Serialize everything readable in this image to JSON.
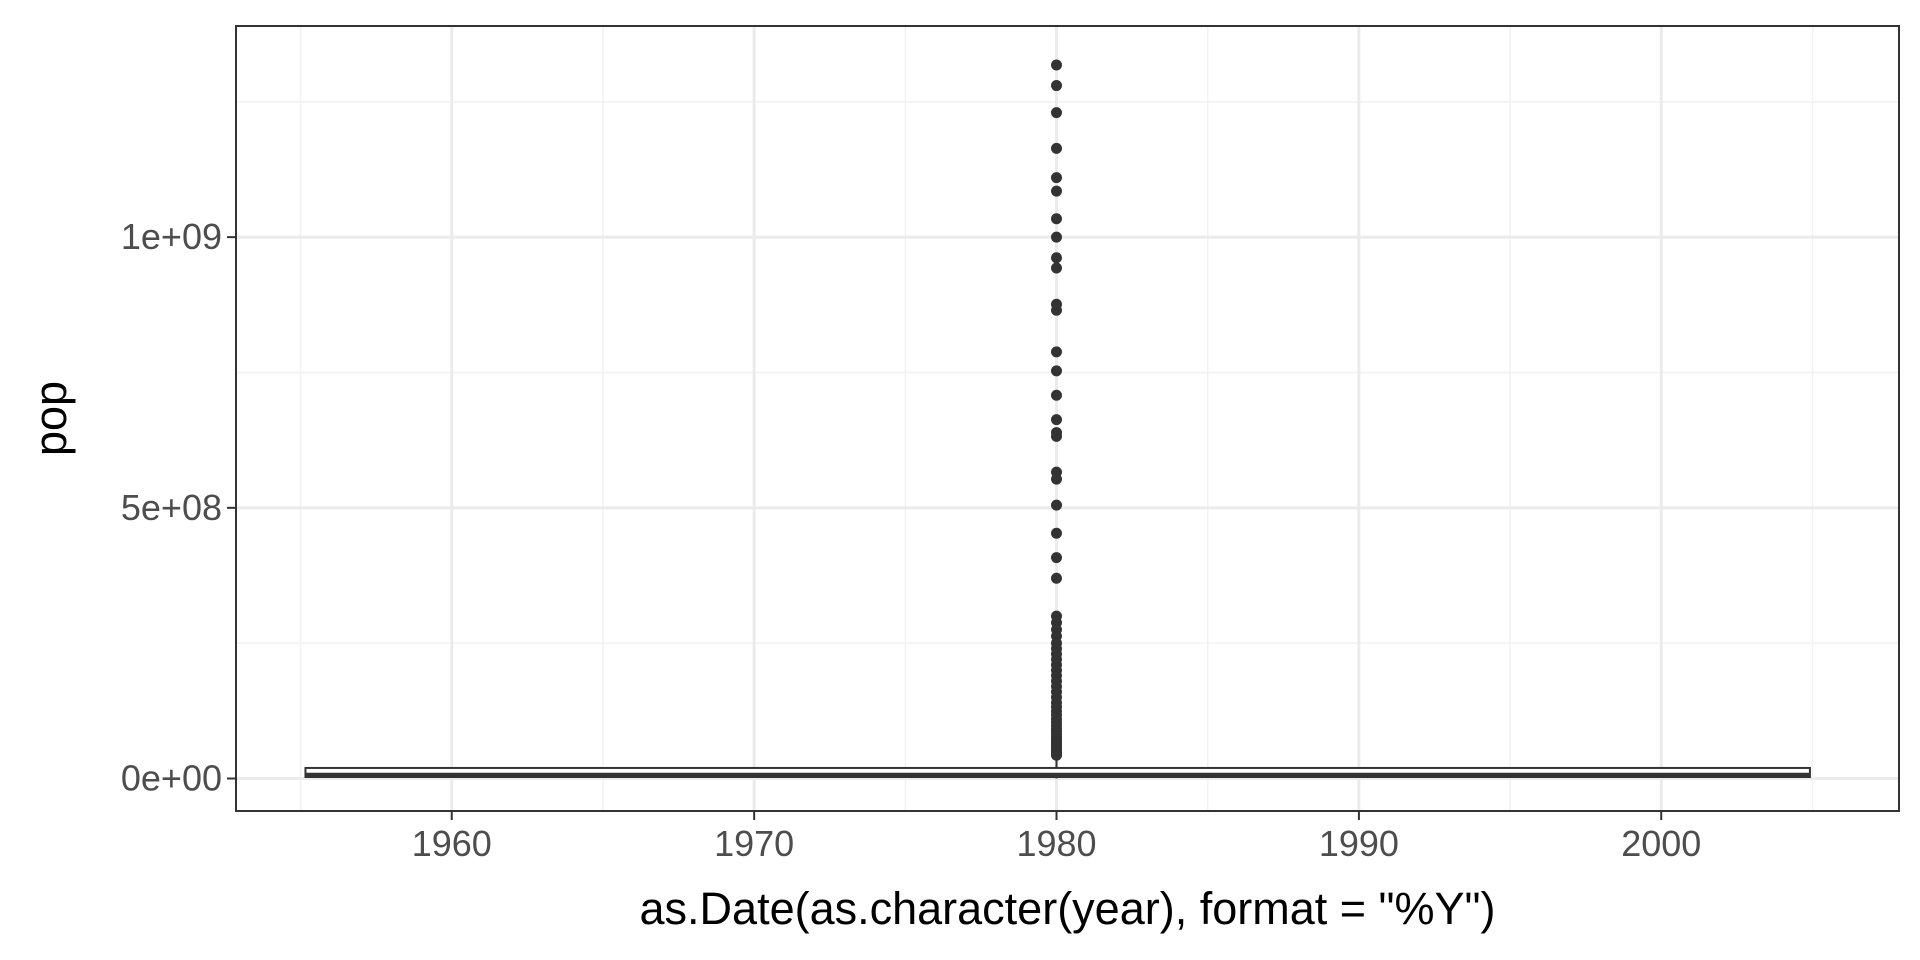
{
  "chart_data": {
    "type": "boxplot",
    "x_type": "date",
    "xlabel": "as.Date(as.character(year), format = \"%Y\")",
    "ylabel": "pop",
    "xlim": [
      "1952-11-12",
      "2007-11-12"
    ],
    "ylim": [
      -60000000,
      1390000000
    ],
    "x_ticks": [
      {
        "value": "1960-01-01",
        "label": "1960"
      },
      {
        "value": "1970-01-01",
        "label": "1970"
      },
      {
        "value": "1980-01-01",
        "label": "1980"
      },
      {
        "value": "1990-01-01",
        "label": "1990"
      },
      {
        "value": "2000-01-01",
        "label": "2000"
      }
    ],
    "x_minor_ticks": [
      "1955-01-01",
      "1965-01-01",
      "1975-01-01",
      "1985-01-01",
      "1995-01-01",
      "2005-01-01"
    ],
    "y_ticks": [
      {
        "value": 0,
        "label": "0e+00"
      },
      {
        "value": 500000000,
        "label": "5e+08"
      },
      {
        "value": 1000000000,
        "label": "1e+09"
      }
    ],
    "y_minor_ticks": [
      250000000,
      750000000,
      1250000000
    ],
    "grid": true,
    "box": {
      "x_start": "1955-03-01",
      "x_end": "2004-12-01",
      "x_center": "1980-01-01",
      "q1": 2800000,
      "median": 7000000,
      "q3": 19500000,
      "whisker_low": 60000,
      "whisker_high": 42000000
    },
    "outliers": {
      "x": "1980-01-01",
      "y": [
        1318000000,
        1280000000,
        1230000000,
        1164000000,
        1110000000,
        1085000000,
        1034000000,
        1000000000,
        962000000,
        943000000,
        876000000,
        865000000,
        788000000,
        753000000,
        708000000,
        663000000,
        639000000,
        632000000,
        566000000,
        553000000,
        505000000,
        453000000,
        408000000,
        370000000,
        300000000,
        288000000,
        275000000,
        263000000,
        250000000,
        240000000,
        230000000,
        220000000,
        210000000,
        200000000,
        190000000,
        180000000,
        170000000,
        160000000,
        150000000,
        140000000,
        132000000,
        124000000,
        117000000,
        110000000,
        104000000,
        98000000,
        92000000,
        87000000,
        82000000,
        77000000,
        72000000,
        68000000,
        64000000,
        60000000,
        56000000,
        52000000,
        49000000,
        46000000,
        43000000
      ]
    },
    "colors": {
      "point": "#333333",
      "box_stroke": "#333333",
      "box_fill": "#ffffff",
      "grid_major": "#ebebeb",
      "grid_minor": "#f2f2f2",
      "panel_border": "#333333",
      "tick_label": "#4d4d4d"
    }
  }
}
